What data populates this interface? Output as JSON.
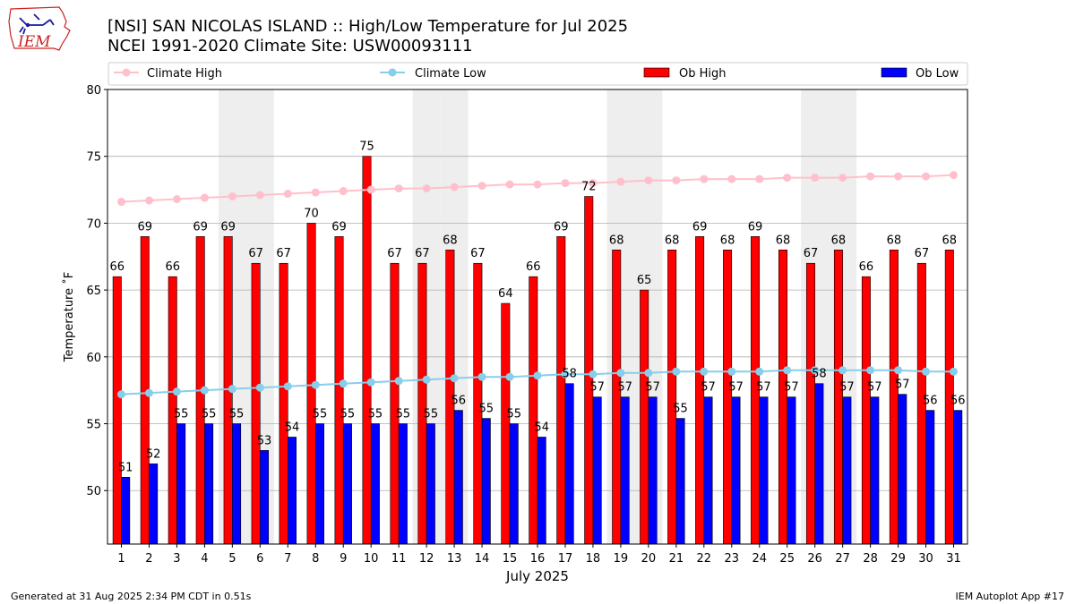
{
  "header": {
    "title_line1": "[NSI] SAN NICOLAS ISLAND :: High/Low Temperature for Jul 2025",
    "title_line2": "NCEI 1991-2020 Climate Site: USW00093111",
    "logo_text": "IEM"
  },
  "footer": {
    "left": "Generated at 31 Aug 2025 2:34 PM CDT in 0.51s",
    "right": "IEM Autoplot App #17"
  },
  "colors": {
    "ob_high": "#ff0000",
    "ob_low": "#0000ff",
    "climate_high": "#ffc0cb",
    "climate_low": "#87ceeb",
    "weekend_band": "#eeeeee",
    "grid": "#b0b0b0",
    "logo": "#cc2222",
    "logo_accent": "#1a1aa0"
  },
  "chart_data": {
    "type": "bar",
    "xlabel": "July 2025",
    "ylabel": "Temperature ˚F",
    "ylim": [
      46,
      80
    ],
    "yticks": [
      50,
      55,
      60,
      65,
      70,
      75,
      80
    ],
    "grid": true,
    "legend_position": "top",
    "categories": [
      "1",
      "2",
      "3",
      "4",
      "5",
      "6",
      "7",
      "8",
      "9",
      "10",
      "11",
      "12",
      "13",
      "14",
      "15",
      "16",
      "17",
      "18",
      "19",
      "20",
      "21",
      "22",
      "23",
      "24",
      "25",
      "26",
      "27",
      "28",
      "29",
      "30",
      "31"
    ],
    "shaded_days": [
      5,
      6,
      12,
      13,
      19,
      20,
      26,
      27
    ],
    "series": [
      {
        "name": "Ob High",
        "kind": "bar",
        "values": [
          66,
          69,
          66,
          69,
          69,
          67,
          67,
          70,
          69,
          75,
          67,
          67,
          68,
          67,
          64,
          66,
          69,
          72,
          68,
          65,
          68,
          69,
          68,
          69,
          68,
          67,
          68,
          66,
          68,
          67,
          68
        ],
        "labels": [
          "66",
          "69",
          "66",
          "69",
          "69",
          "67",
          "67",
          "70",
          "69",
          "75",
          "67",
          "67",
          "68",
          "67",
          "64",
          "66",
          "69",
          "72",
          "68",
          "65",
          "68",
          "69",
          "68",
          "69",
          "68",
          "67",
          "68",
          "66",
          "68",
          "67",
          "68"
        ]
      },
      {
        "name": "Ob Low",
        "kind": "bar",
        "values": [
          51,
          52,
          55,
          55,
          55,
          53,
          54,
          55,
          55,
          55,
          55,
          55,
          56,
          55.4,
          55,
          54,
          58,
          57,
          57,
          57,
          55.4,
          57,
          57,
          57,
          57,
          58,
          57,
          57,
          57.2,
          56,
          56
        ],
        "labels": [
          "51",
          "52",
          "55",
          "55",
          "55",
          "53",
          "54",
          "55",
          "55",
          "55",
          "55",
          "55",
          "56",
          "55",
          "55",
          "54",
          "58",
          "57",
          "57",
          "57",
          "55",
          "57",
          "57",
          "57",
          "57",
          "58",
          "57",
          "57",
          "57",
          "56",
          "56"
        ]
      },
      {
        "name": "Climate High",
        "kind": "line",
        "values": [
          71.6,
          71.7,
          71.8,
          71.9,
          72.0,
          72.1,
          72.2,
          72.3,
          72.4,
          72.5,
          72.6,
          72.6,
          72.7,
          72.8,
          72.9,
          72.9,
          73.0,
          73.0,
          73.1,
          73.2,
          73.2,
          73.3,
          73.3,
          73.3,
          73.4,
          73.4,
          73.4,
          73.5,
          73.5,
          73.5,
          73.6
        ]
      },
      {
        "name": "Climate Low",
        "kind": "line",
        "values": [
          57.2,
          57.3,
          57.4,
          57.5,
          57.6,
          57.7,
          57.8,
          57.9,
          58.0,
          58.1,
          58.2,
          58.3,
          58.4,
          58.5,
          58.5,
          58.6,
          58.7,
          58.7,
          58.8,
          58.8,
          58.9,
          58.9,
          58.9,
          58.9,
          59.0,
          59.0,
          59.0,
          59.0,
          59.0,
          58.9,
          58.9
        ]
      }
    ]
  }
}
